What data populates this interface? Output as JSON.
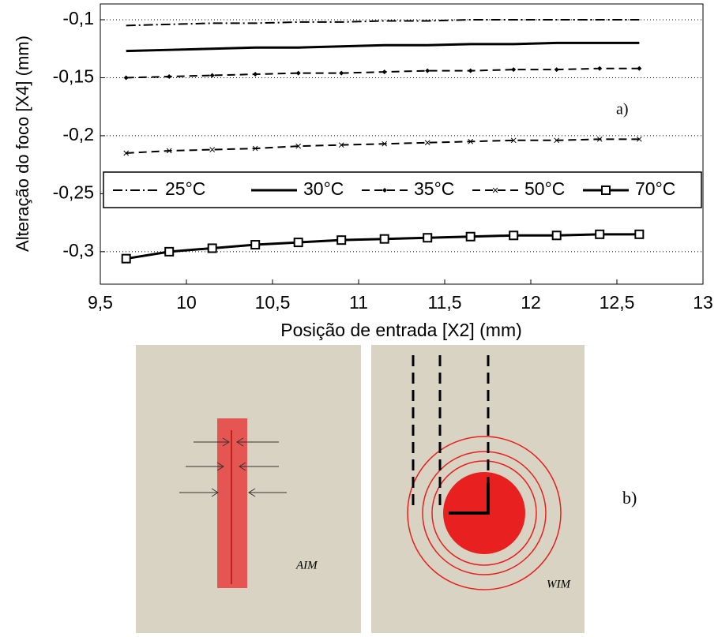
{
  "chart_data": {
    "type": "line",
    "x_label": "Posição de entrada [X2] (mm)",
    "y_label": "Alteração do foco [X4] (mm)",
    "annotations": [
      "a)",
      "b)",
      "AIM",
      "WIM"
    ],
    "x": [
      9.65,
      9.9,
      10.15,
      10.4,
      10.65,
      10.9,
      11.15,
      11.4,
      11.65,
      11.9,
      12.15,
      12.4,
      12.63
    ],
    "series": [
      {
        "name": "25°C",
        "color": "#000000",
        "dash": "dashdot",
        "marker": "none",
        "values": [
          -0.105,
          -0.104,
          -0.103,
          -0.103,
          -0.102,
          -0.102,
          -0.101,
          -0.101,
          -0.1,
          -0.1,
          -0.1,
          -0.1,
          -0.1
        ]
      },
      {
        "name": "30°C",
        "color": "#000000",
        "dash": "solid",
        "marker": "none",
        "values": [
          -0.127,
          -0.126,
          -0.125,
          -0.124,
          -0.124,
          -0.123,
          -0.122,
          -0.122,
          -0.121,
          -0.121,
          -0.12,
          -0.12,
          -0.12
        ]
      },
      {
        "name": "35°C",
        "color": "#000000",
        "dash": "dashed",
        "marker": "diamond",
        "values": [
          -0.15,
          -0.149,
          -0.148,
          -0.147,
          -0.146,
          -0.146,
          -0.145,
          -0.144,
          -0.144,
          -0.143,
          -0.143,
          -0.142,
          -0.142
        ]
      },
      {
        "name": "50°C",
        "color": "#000000",
        "dash": "dashed",
        "marker": "x",
        "values": [
          -0.215,
          -0.213,
          -0.212,
          -0.211,
          -0.209,
          -0.208,
          -0.207,
          -0.206,
          -0.205,
          -0.204,
          -0.204,
          -0.203,
          -0.203
        ]
      },
      {
        "name": "70°C",
        "color": "#000000",
        "dash": "solid",
        "marker": "square",
        "values": [
          -0.306,
          -0.3,
          -0.297,
          -0.294,
          -0.292,
          -0.29,
          -0.289,
          -0.288,
          -0.287,
          -0.286,
          -0.286,
          -0.285,
          -0.285
        ]
      }
    ],
    "xlim": [
      9.5,
      13
    ],
    "ylim": [
      -0.328,
      -0.0864
    ],
    "xticks": [
      {
        "value": 9.5,
        "label": "9,5"
      },
      10,
      {
        "value": 10.5,
        "label": "10,5"
      },
      11,
      {
        "value": 11.5,
        "label": "11,5"
      },
      12,
      {
        "value": 12.5,
        "label": "12,5"
      },
      13
    ],
    "yticks": [
      {
        "value": -0.3,
        "label": "-0,3"
      },
      {
        "value": -0.25,
        "label": "-0,25"
      },
      {
        "value": -0.2,
        "label": "-0,2"
      },
      {
        "value": -0.15,
        "label": "-0,15"
      },
      {
        "value": -0.1,
        "label": "-0,1"
      }
    ],
    "grid": "y",
    "legend": "inside-center"
  }
}
